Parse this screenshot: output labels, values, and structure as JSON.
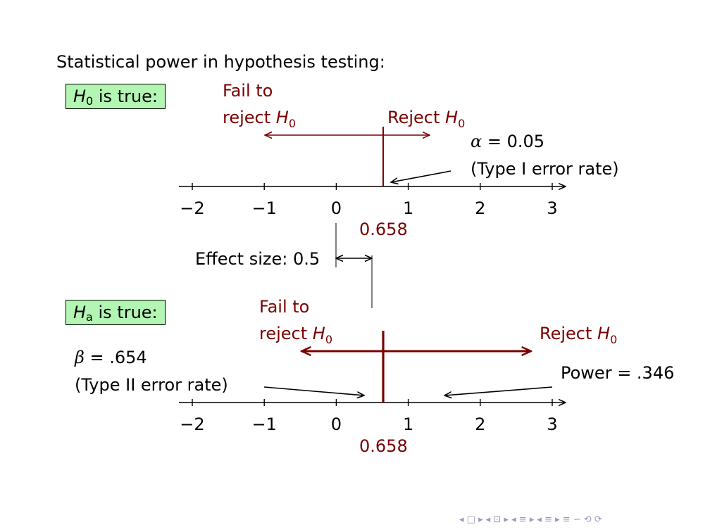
{
  "title": "Statistical power in hypothesis testing:",
  "accent_color": "#7a0000",
  "box_color": "#b3f5b3",
  "top_panel": {
    "box": {
      "symbol": "H",
      "subscript": "0",
      "text": " is true:"
    },
    "fail_line1": "Fail to",
    "fail_line2": "reject",
    "fail_symbol": "H",
    "fail_sub": "0",
    "reject_text": "Reject",
    "reject_symbol": "H",
    "reject_sub": "0",
    "alpha_symbol": "α",
    "alpha_value": " = 0.05",
    "alpha_note": "(Type I error rate)",
    "critical_label": "0.658"
  },
  "effect": {
    "label": "Effect size: 0.5"
  },
  "bottom_panel": {
    "box": {
      "symbol": "H",
      "subscript": "a",
      "text": " is true:"
    },
    "fail_line1": "Fail to",
    "fail_line2": "reject",
    "fail_symbol": "H",
    "fail_sub": "0",
    "reject_text": "Reject",
    "reject_symbol": "H",
    "reject_sub": "0",
    "beta_symbol": "β",
    "beta_value": " = .654",
    "beta_note": "(Type II error rate)",
    "power_label": "Power = .346",
    "critical_label": "0.658"
  },
  "chart_data": {
    "type": "other",
    "axis_ticks": [
      "−2",
      "−1",
      "0",
      "1",
      "2",
      "3"
    ],
    "xlim": [
      -2,
      3
    ],
    "critical_value": 0.658,
    "effect_size": 0.5,
    "alpha": 0.05,
    "beta": 0.654,
    "power": 0.346
  },
  "nav": {
    "symbols": "◂ □ ▸ ◂ ⊡ ▸ ◂ ≡ ▸ ◂ ≡ ▸   ≡   ∽ ⟲ ⟳"
  }
}
